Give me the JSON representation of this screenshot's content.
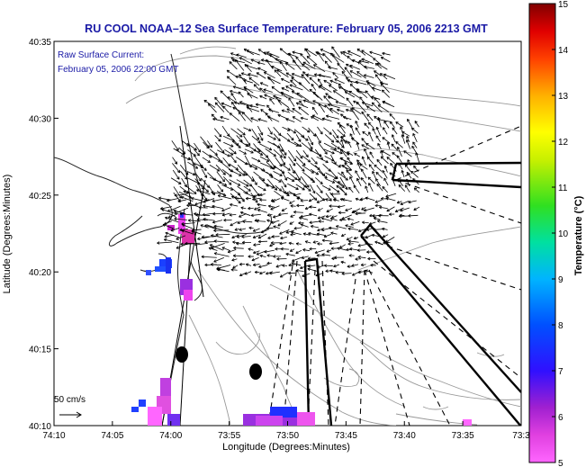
{
  "title": "RU COOL  NOAA–12  Sea Surface Temperature:  February 05, 2006 2213 GMT",
  "overlay": {
    "line1": "Raw Surface Current:",
    "line2": "February 05, 2006 22:00 GMT"
  },
  "scale_label": "50 cm/s",
  "axes": {
    "xlabel": "Longitude (Degrees:Minutes)",
    "ylabel": "Latitude (Degrees:Minutes)",
    "x_ticks": [
      "74:10",
      "74:05",
      "74:00",
      "73:55",
      "73:50",
      "73:45",
      "73:40",
      "73:35",
      "73:3"
    ],
    "y_ticks": [
      "40:35",
      "40:30",
      "40:25",
      "40:20",
      "40:15",
      "40:10"
    ]
  },
  "colorbar": {
    "label": "Temperature (°C)",
    "ticks": [
      "15",
      "14",
      "13",
      "12",
      "11",
      "10",
      "9",
      "8",
      "7",
      "6",
      "5"
    ],
    "min": 5,
    "max": 15
  },
  "colors": {
    "title_text": "#1a1aa6",
    "vector": "#000000",
    "land_contour": "#222222",
    "bathymetry": "#999999"
  }
}
